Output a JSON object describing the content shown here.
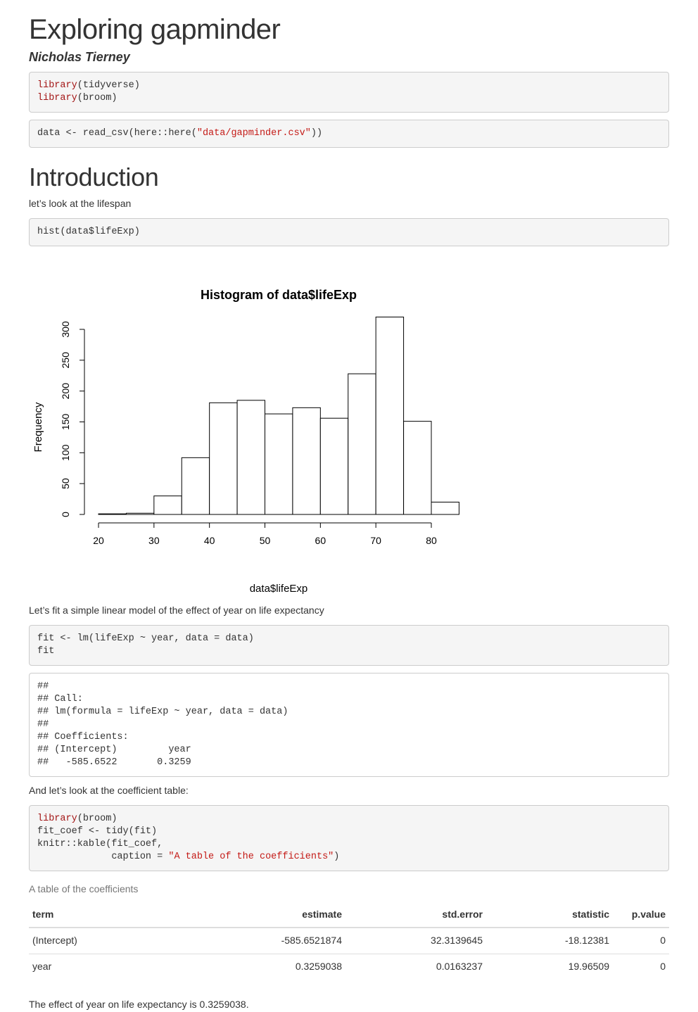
{
  "title": "Exploring gapminder",
  "author": "Nicholas Tierney",
  "code1": {
    "line1_fn": "library",
    "line1_arg": "(tidyverse)",
    "line2_fn": "library",
    "line2_arg": "(broom)"
  },
  "code2": {
    "pre": "data <- read_csv(here::here(",
    "str": "\"data/gapminder.csv\"",
    "post": "))"
  },
  "intro_heading": "Introduction",
  "intro_text": "let’s look at the lifespan",
  "code3": "hist(data$lifeExp)",
  "chart_data": {
    "type": "bar",
    "title": "Histogram of data$lifeExp",
    "xlabel": "data$lifeExp",
    "ylabel": "Frequency",
    "bin_edges": [
      20,
      25,
      30,
      35,
      40,
      45,
      50,
      55,
      60,
      65,
      70,
      75,
      80,
      85
    ],
    "values": [
      1,
      2,
      30,
      92,
      181,
      185,
      163,
      173,
      156,
      228,
      320,
      151,
      20
    ],
    "xticks": [
      "20",
      "30",
      "40",
      "50",
      "60",
      "70",
      "80"
    ],
    "yticks": [
      "0",
      "50",
      "100",
      "150",
      "200",
      "250",
      "300"
    ],
    "xlim": [
      20,
      80
    ],
    "ylim": [
      0,
      300
    ]
  },
  "fit_text": "Let’s fit a simple linear model of the effect of year on life expectancy",
  "code4": {
    "line1": "fit <- lm(lifeExp ~ year, data = data)",
    "line2": "fit"
  },
  "output1": {
    "l1": "##",
    "l2": "## Call:",
    "l3": "## lm(formula = lifeExp ~ year, data = data)",
    "l4": "##",
    "l5": "## Coefficients:",
    "l6": "## (Intercept)         year",
    "l7": "##   -585.6522       0.3259"
  },
  "coef_text": "And let’s look at the coefficient table:",
  "code5": {
    "l1_fn": "library",
    "l1_arg": "(broom)",
    "l2": "fit_coef <- tidy(fit)",
    "l3": "knitr::kable(fit_coef,",
    "l4_pre": "             caption = ",
    "l4_str": "\"A table of the coefficients\"",
    "l4_post": ")"
  },
  "table": {
    "caption": "A table of the coefficients",
    "headers": [
      "term",
      "estimate",
      "std.error",
      "statistic",
      "p.value"
    ],
    "rows": [
      [
        "(Intercept)",
        "-585.6521874",
        "32.3139645",
        "-18.12381",
        "0"
      ],
      [
        "year",
        "0.3259038",
        "0.0163237",
        "19.96509",
        "0"
      ]
    ]
  },
  "final_text": "The effect of year on life expectancy is 0.3259038."
}
